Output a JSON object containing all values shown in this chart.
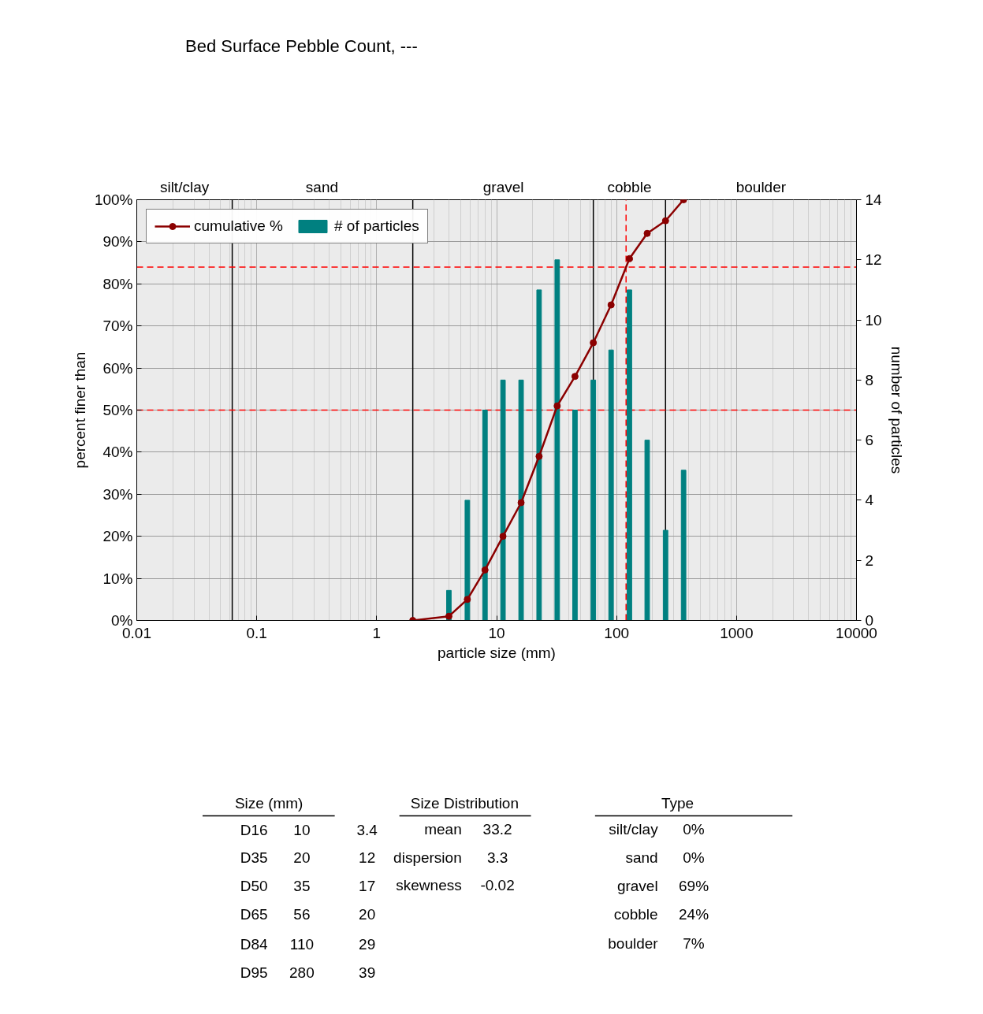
{
  "chart_data": {
    "type": "line",
    "title": "Bed Surface  Pebble Count,   ---",
    "xlabel": "particle size (mm)",
    "ylabel": "percent finer than",
    "y2label": "number of particles",
    "log": "x",
    "xlim": [
      0.01,
      10000
    ],
    "xticks": [
      0.01,
      0.1,
      1,
      10,
      100,
      1000,
      10000
    ],
    "ylim": [
      0,
      100
    ],
    "yticks": [
      {
        "value": 0,
        "label": "0%"
      },
      {
        "value": 10,
        "label": "10%"
      },
      {
        "value": 20,
        "label": "20%"
      },
      {
        "value": 30,
        "label": "30%"
      },
      {
        "value": 40,
        "label": "40%"
      },
      {
        "value": 50,
        "label": "50%"
      },
      {
        "value": 60,
        "label": "60%"
      },
      {
        "value": 70,
        "label": "70%"
      },
      {
        "value": 80,
        "label": "80%"
      },
      {
        "value": 90,
        "label": "90%"
      },
      {
        "value": 100,
        "label": "100%"
      }
    ],
    "y2lim": [
      0,
      14
    ],
    "y2ticks": [
      0,
      2,
      4,
      6,
      8,
      10,
      12,
      14
    ],
    "grid": true,
    "legend": "top left",
    "marker": "circle",
    "series": [
      {
        "name": "cumulative %",
        "color": "#8b0000",
        "x": [
          2,
          4,
          5.7,
          8,
          11.3,
          16,
          22.6,
          32,
          45,
          64,
          90,
          128,
          180,
          256,
          362
        ],
        "values": [
          0,
          1,
          5,
          12,
          20,
          28,
          39,
          51,
          58,
          66,
          75,
          86,
          92,
          95,
          100
        ]
      },
      {
        "name": "# of particles",
        "type": "bar",
        "axis": "y2",
        "color": "#008080",
        "x": [
          4,
          5.7,
          8,
          11.3,
          16,
          22.6,
          32,
          45,
          64,
          90,
          128,
          180,
          256,
          362
        ],
        "values": [
          1,
          4,
          7,
          8,
          8,
          11,
          12,
          7,
          8,
          9,
          11,
          6,
          3,
          5
        ]
      }
    ],
    "ref_lines": [
      {
        "axis": "x",
        "value": 0.0625,
        "color": "#000000",
        "line_style": "solid"
      },
      {
        "axis": "x",
        "value": 2,
        "color": "#000000",
        "line_style": "solid"
      },
      {
        "axis": "x",
        "value": 64,
        "color": "#000000",
        "line_style": "solid"
      },
      {
        "axis": "x",
        "value": 256,
        "color": "#000000",
        "line_style": "solid"
      },
      {
        "axis": "y",
        "value": 84,
        "color": "#ff0000",
        "line_style": "dashed"
      },
      {
        "axis": "y",
        "value": 50,
        "color": "#ff0000",
        "line_style": "dashed"
      },
      {
        "axis": "x",
        "value": 120,
        "color": "#ff0000",
        "line_style": "dashed"
      }
    ],
    "annotations": [
      "silt/clay",
      "sand",
      "gravel",
      "cobble",
      "boulder",
      "Size (mm)",
      "D16",
      "10",
      "3.4",
      "D35",
      "20",
      "12",
      "D50",
      "35",
      "17",
      "D65",
      "56",
      "20",
      "D84",
      "110",
      "29",
      "D95",
      "280",
      "39",
      "Size Distribution",
      "mean",
      "33.2",
      "dispersion",
      "3.3",
      "skewness",
      "-0.02",
      "Type",
      "silt/clay",
      "0%",
      "sand",
      "0%",
      "gravel",
      "69%",
      "cobble",
      "24%",
      "boulder",
      "7%"
    ]
  }
}
